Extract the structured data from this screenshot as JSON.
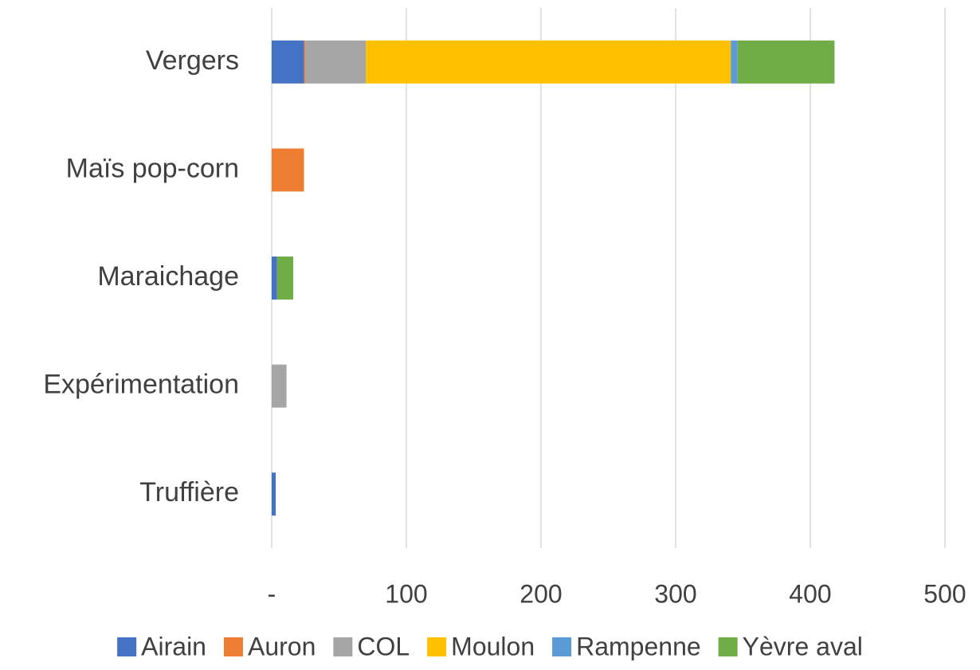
{
  "chart_data": {
    "type": "stacked_barh",
    "categories": [
      "Vergers",
      "Maïs pop-corn",
      "Maraichage",
      "Expérimentation",
      "Truffière"
    ],
    "series": [
      {
        "name": "Airain",
        "color": "#4472c4",
        "values": [
          24,
          0,
          4,
          0,
          3
        ]
      },
      {
        "name": "Auron",
        "color": "#ed7d31",
        "values": [
          1,
          24,
          0,
          0,
          0
        ]
      },
      {
        "name": "COL",
        "color": "#a5a5a5",
        "values": [
          45,
          0,
          0,
          11,
          0
        ]
      },
      {
        "name": "Moulon",
        "color": "#ffc000",
        "values": [
          271,
          0,
          0,
          0,
          0
        ]
      },
      {
        "name": "Rampenne",
        "color": "#5b9bd5",
        "values": [
          5,
          0,
          0,
          0,
          0
        ]
      },
      {
        "name": "Yèvre aval",
        "color": "#70ad47",
        "values": [
          72,
          0,
          12,
          0,
          0
        ]
      }
    ],
    "xlim": [
      0,
      500
    ],
    "xticks": [
      {
        "value": 0,
        "label": "-"
      },
      100,
      200,
      300,
      400,
      500
    ],
    "grid": true,
    "legend": "bottom"
  }
}
